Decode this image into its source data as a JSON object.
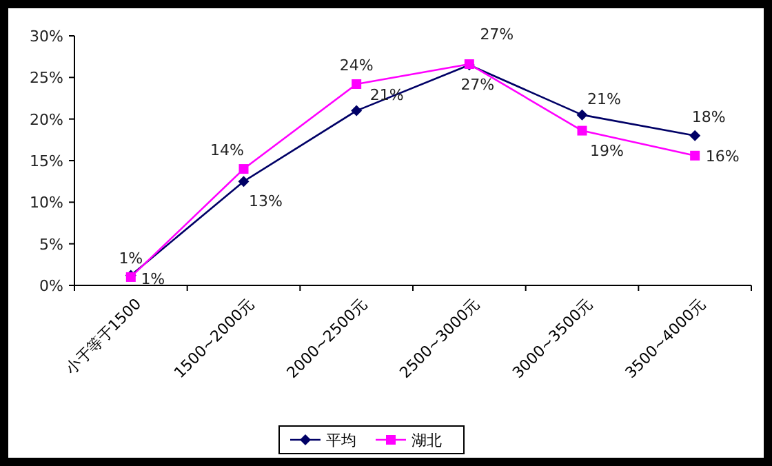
{
  "chart_data": {
    "type": "line",
    "categories": [
      "小于等于1500",
      "1500~2000元",
      "2000~2500元",
      "2500~3000元",
      "3000~3500元",
      "3500~4000元"
    ],
    "series": [
      {
        "name": "平均",
        "color": "#000066",
        "marker": "diamond",
        "values": [
          1.2,
          12.5,
          21,
          26.5,
          20.5,
          18
        ],
        "value_labels": [
          "1%",
          "13%",
          "21%",
          "27%",
          "21%",
          "18%"
        ]
      },
      {
        "name": "湖北",
        "color": "#ff00ff",
        "marker": "square",
        "values": [
          1,
          14,
          24.2,
          26.6,
          18.6,
          15.6
        ],
        "value_labels": [
          "1%",
          "14%",
          "24%",
          "27%",
          "19%",
          "16%"
        ]
      }
    ],
    "ylim": [
      0,
      30
    ],
    "yticks": [
      {
        "value": 0,
        "label": "0%"
      },
      {
        "value": 5,
        "label": "5%"
      },
      {
        "value": 10,
        "label": "10%"
      },
      {
        "value": 15,
        "label": "15%"
      },
      {
        "value": 20,
        "label": "20%"
      },
      {
        "value": 25,
        "label": "25%"
      },
      {
        "value": 30,
        "label": "30%"
      }
    ],
    "legend": "bottom",
    "grid": false
  }
}
